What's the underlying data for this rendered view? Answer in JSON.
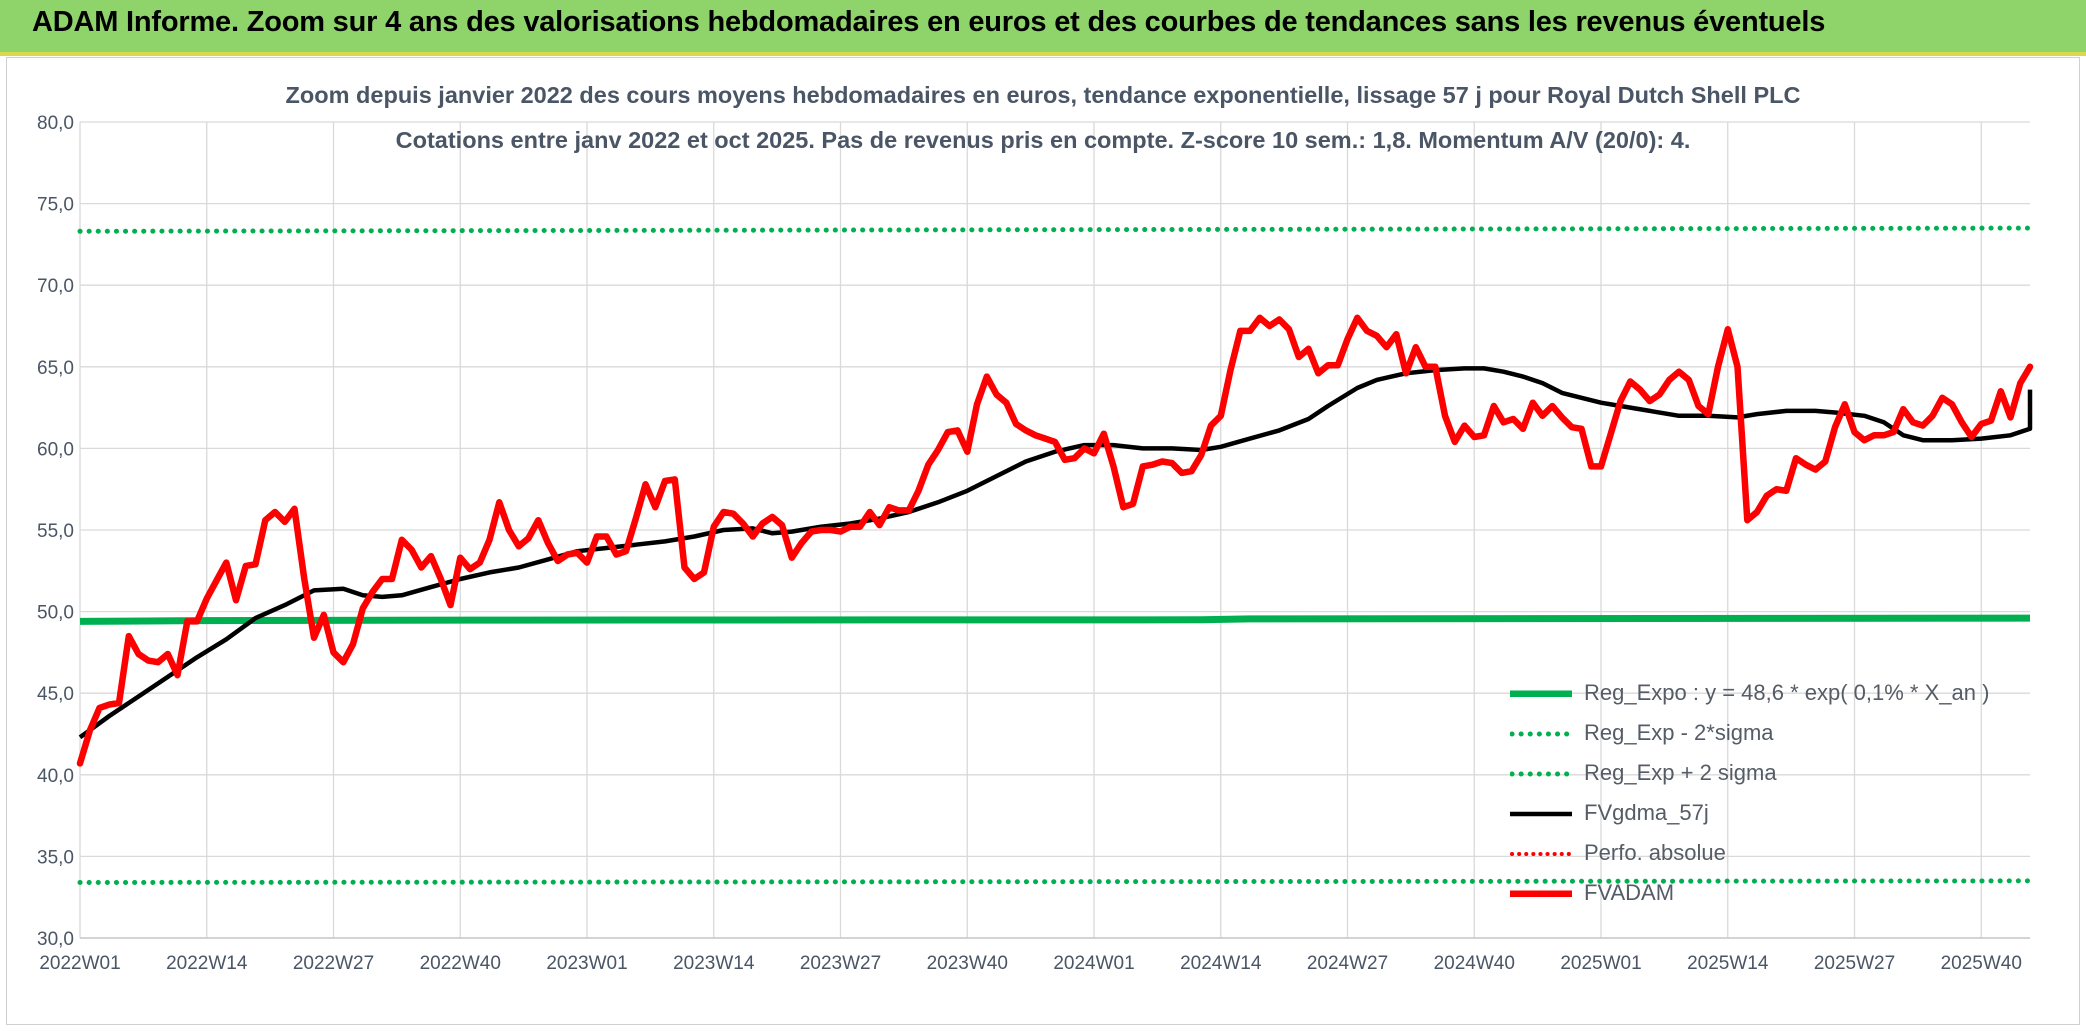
{
  "header": {
    "title": "ADAM Informe. Zoom sur 4 ans des valorisations hebdomadaires en euros et des courbes de tendances sans les revenus éventuels"
  },
  "chart_data": {
    "type": "line",
    "title": "Zoom depuis janvier 2022 des cours moyens hebdomadaires en euros, tendance exponentielle, lissage 57 j pour Royal Dutch Shell PLC",
    "subtitle": "Cotations entre janv 2022 et oct 2025. Pas de revenus pris en compte. Z-score 10 sem.: 1,8. Momentum A/V (20/0): 4.",
    "xlabel": "",
    "ylabel": "",
    "ylim": [
      30,
      80
    ],
    "y_ticks": [
      "80,0",
      "75,0",
      "70,0",
      "65,0",
      "60,0",
      "55,0",
      "50,0",
      "45,0",
      "40,0",
      "35,0",
      "30,0"
    ],
    "x_ticks": [
      "2022W01",
      "2022W14",
      "2022W27",
      "2022W40",
      "2023W01",
      "2023W14",
      "2023W27",
      "2023W40",
      "2024W01",
      "2024W14",
      "2024W27",
      "2024W40",
      "2025W01",
      "2025W14",
      "2025W27",
      "2025W40"
    ],
    "x_tick_index": [
      0,
      13,
      26,
      39,
      52,
      65,
      78,
      91,
      104,
      117,
      130,
      143,
      156,
      169,
      182,
      195
    ],
    "n_weeks": 201,
    "grid": true,
    "legend_position": "bottom-right",
    "colors": {
      "reg": "#00b050",
      "ma": "#000000",
      "price": "#ff0000",
      "perfo": "#ff0000",
      "grid": "#d9d9d9",
      "axis_text": "#4a5565"
    },
    "series": [
      {
        "name": "Reg_Expo : y = 48,6 * exp( 0,1% *  X_an )",
        "style": "solid-thick",
        "points": [
          [
            0,
            49.4
          ],
          [
            12,
            49.45
          ],
          [
            40,
            49.48
          ],
          [
            115,
            49.5
          ],
          [
            120,
            49.55
          ],
          [
            200,
            49.6
          ]
        ]
      },
      {
        "name": "Reg_Exp - 2*sigma",
        "style": "dotted",
        "points": [
          [
            0,
            33.4
          ],
          [
            200,
            33.5
          ]
        ]
      },
      {
        "name": "Reg_Exp + 2 sigma",
        "style": "dotted",
        "points": [
          [
            0,
            73.3
          ],
          [
            200,
            73.5
          ]
        ]
      },
      {
        "name": "FVgdma_57j",
        "style": "solid",
        "points": [
          [
            0,
            42.3
          ],
          [
            3,
            43.6
          ],
          [
            6,
            44.8
          ],
          [
            9,
            46.0
          ],
          [
            12,
            47.2
          ],
          [
            15,
            48.3
          ],
          [
            18,
            49.6
          ],
          [
            21,
            50.4
          ],
          [
            24,
            51.3
          ],
          [
            27,
            51.4
          ],
          [
            29,
            51.0
          ],
          [
            31,
            50.9
          ],
          [
            33,
            51.0
          ],
          [
            36,
            51.5
          ],
          [
            39,
            52.0
          ],
          [
            42,
            52.4
          ],
          [
            45,
            52.7
          ],
          [
            48,
            53.2
          ],
          [
            51,
            53.7
          ],
          [
            54,
            53.9
          ],
          [
            57,
            54.1
          ],
          [
            60,
            54.3
          ],
          [
            63,
            54.6
          ],
          [
            66,
            55.0
          ],
          [
            69,
            55.1
          ],
          [
            71,
            54.8
          ],
          [
            73,
            54.9
          ],
          [
            76,
            55.2
          ],
          [
            79,
            55.4
          ],
          [
            82,
            55.7
          ],
          [
            85,
            56.1
          ],
          [
            88,
            56.7
          ],
          [
            91,
            57.4
          ],
          [
            94,
            58.3
          ],
          [
            97,
            59.2
          ],
          [
            100,
            59.8
          ],
          [
            103,
            60.2
          ],
          [
            106,
            60.2
          ],
          [
            109,
            60.0
          ],
          [
            112,
            60.0
          ],
          [
            115,
            59.9
          ],
          [
            117,
            60.1
          ],
          [
            120,
            60.6
          ],
          [
            123,
            61.1
          ],
          [
            126,
            61.8
          ],
          [
            128,
            62.6
          ],
          [
            131,
            63.7
          ],
          [
            133,
            64.2
          ],
          [
            136,
            64.6
          ],
          [
            139,
            64.8
          ],
          [
            142,
            64.9
          ],
          [
            144,
            64.9
          ],
          [
            146,
            64.7
          ],
          [
            148,
            64.4
          ],
          [
            150,
            64.0
          ],
          [
            152,
            63.4
          ],
          [
            154,
            63.1
          ],
          [
            156,
            62.8
          ],
          [
            158,
            62.6
          ],
          [
            161,
            62.3
          ],
          [
            164,
            62.0
          ],
          [
            167,
            62.0
          ],
          [
            170,
            61.9
          ],
          [
            172,
            62.1
          ],
          [
            175,
            62.3
          ],
          [
            178,
            62.3
          ],
          [
            180,
            62.2
          ],
          [
            183,
            62.0
          ],
          [
            185,
            61.6
          ],
          [
            187,
            60.8
          ],
          [
            189,
            60.5
          ],
          [
            192,
            60.5
          ],
          [
            195,
            60.6
          ],
          [
            198,
            60.8
          ],
          [
            201,
            61.2
          ],
          [
            204,
            61.6
          ],
          [
            206,
            62.0
          ],
          [
            208,
            62.2
          ],
          [
            210,
            62.5
          ],
          [
            212,
            62.8
          ],
          [
            214,
            63.2
          ],
          [
            216,
            63.6
          ]
        ]
      },
      {
        "name": "Perfo. absolue",
        "style": "dotted-red",
        "points": []
      },
      {
        "name": "FVADAM",
        "style": "solid-thick",
        "points": [
          [
            0,
            40.7
          ],
          [
            1,
            42.7
          ],
          [
            2,
            44.1
          ],
          [
            3,
            44.3
          ],
          [
            4,
            44.4
          ],
          [
            5,
            48.5
          ],
          [
            6,
            47.4
          ],
          [
            7,
            47.0
          ],
          [
            8,
            46.9
          ],
          [
            9,
            47.4
          ],
          [
            10,
            46.1
          ],
          [
            11,
            49.4
          ],
          [
            12,
            49.4
          ],
          [
            13,
            50.8
          ],
          [
            14,
            51.9
          ],
          [
            15,
            53.0
          ],
          [
            16,
            50.7
          ],
          [
            17,
            52.8
          ],
          [
            18,
            52.9
          ],
          [
            19,
            55.6
          ],
          [
            20,
            56.1
          ],
          [
            21,
            55.5
          ],
          [
            22,
            56.3
          ],
          [
            23,
            52.0
          ],
          [
            24,
            48.4
          ],
          [
            25,
            49.8
          ],
          [
            26,
            47.5
          ],
          [
            27,
            46.9
          ],
          [
            28,
            48.0
          ],
          [
            29,
            50.2
          ],
          [
            30,
            51.2
          ],
          [
            31,
            52.0
          ],
          [
            32,
            52.0
          ],
          [
            33,
            54.4
          ],
          [
            34,
            53.8
          ],
          [
            35,
            52.7
          ],
          [
            36,
            53.4
          ],
          [
            37,
            52.0
          ],
          [
            38,
            50.4
          ],
          [
            39,
            53.3
          ],
          [
            40,
            52.6
          ],
          [
            41,
            53.0
          ],
          [
            42,
            54.4
          ],
          [
            43,
            56.7
          ],
          [
            44,
            55.0
          ],
          [
            45,
            54.0
          ],
          [
            46,
            54.5
          ],
          [
            47,
            55.6
          ],
          [
            48,
            54.2
          ],
          [
            49,
            53.1
          ],
          [
            50,
            53.5
          ],
          [
            51,
            53.6
          ],
          [
            52,
            53.0
          ],
          [
            53,
            54.6
          ],
          [
            54,
            54.6
          ],
          [
            55,
            53.5
          ],
          [
            56,
            53.7
          ],
          [
            57,
            55.7
          ],
          [
            58,
            57.8
          ],
          [
            59,
            56.4
          ],
          [
            60,
            58.0
          ],
          [
            61,
            58.1
          ],
          [
            62,
            52.7
          ],
          [
            63,
            52.0
          ],
          [
            64,
            52.4
          ],
          [
            65,
            55.2
          ],
          [
            66,
            56.1
          ],
          [
            67,
            56.0
          ],
          [
            68,
            55.4
          ],
          [
            69,
            54.6
          ],
          [
            70,
            55.4
          ],
          [
            71,
            55.8
          ],
          [
            72,
            55.3
          ],
          [
            73,
            53.3
          ],
          [
            74,
            54.2
          ],
          [
            75,
            54.9
          ],
          [
            76,
            55.0
          ],
          [
            77,
            55.0
          ],
          [
            78,
            54.9
          ],
          [
            79,
            55.2
          ],
          [
            80,
            55.2
          ],
          [
            81,
            56.1
          ],
          [
            82,
            55.3
          ],
          [
            83,
            56.4
          ],
          [
            84,
            56.2
          ],
          [
            85,
            56.2
          ],
          [
            86,
            57.4
          ],
          [
            87,
            59.0
          ],
          [
            88,
            59.9
          ],
          [
            89,
            61.0
          ],
          [
            90,
            61.1
          ],
          [
            91,
            59.8
          ],
          [
            92,
            62.7
          ],
          [
            93,
            64.4
          ],
          [
            94,
            63.3
          ],
          [
            95,
            62.8
          ],
          [
            96,
            61.5
          ],
          [
            97,
            61.1
          ],
          [
            98,
            60.8
          ],
          [
            99,
            60.6
          ],
          [
            100,
            60.4
          ],
          [
            101,
            59.3
          ],
          [
            102,
            59.4
          ],
          [
            103,
            60.0
          ],
          [
            104,
            59.7
          ],
          [
            105,
            60.9
          ],
          [
            106,
            58.9
          ],
          [
            107,
            56.4
          ],
          [
            108,
            56.6
          ],
          [
            109,
            58.9
          ],
          [
            110,
            59.0
          ],
          [
            111,
            59.2
          ],
          [
            112,
            59.1
          ],
          [
            113,
            58.5
          ],
          [
            114,
            58.6
          ],
          [
            115,
            59.6
          ],
          [
            116,
            61.4
          ],
          [
            117,
            62.0
          ],
          [
            118,
            64.8
          ],
          [
            119,
            67.2
          ],
          [
            120,
            67.2
          ],
          [
            121,
            68.0
          ],
          [
            122,
            67.5
          ],
          [
            123,
            67.9
          ],
          [
            124,
            67.3
          ],
          [
            125,
            65.6
          ],
          [
            126,
            66.1
          ],
          [
            127,
            64.6
          ],
          [
            128,
            65.1
          ],
          [
            129,
            65.1
          ],
          [
            130,
            66.7
          ],
          [
            131,
            68.0
          ],
          [
            132,
            67.2
          ],
          [
            133,
            66.9
          ],
          [
            134,
            66.2
          ],
          [
            135,
            67.0
          ],
          [
            136,
            64.6
          ],
          [
            137,
            66.2
          ],
          [
            138,
            65.0
          ],
          [
            139,
            65.0
          ],
          [
            140,
            62.0
          ],
          [
            141,
            60.4
          ],
          [
            142,
            61.4
          ],
          [
            143,
            60.7
          ],
          [
            144,
            60.8
          ],
          [
            145,
            62.6
          ],
          [
            146,
            61.6
          ],
          [
            147,
            61.8
          ],
          [
            148,
            61.2
          ],
          [
            149,
            62.8
          ],
          [
            150,
            62.0
          ],
          [
            151,
            62.6
          ],
          [
            152,
            61.9
          ],
          [
            153,
            61.3
          ],
          [
            154,
            61.2
          ],
          [
            155,
            58.9
          ],
          [
            156,
            58.9
          ],
          [
            157,
            60.9
          ],
          [
            158,
            62.9
          ],
          [
            159,
            64.1
          ],
          [
            160,
            63.6
          ],
          [
            161,
            62.9
          ],
          [
            162,
            63.3
          ],
          [
            163,
            64.2
          ],
          [
            164,
            64.7
          ],
          [
            165,
            64.2
          ],
          [
            166,
            62.6
          ],
          [
            167,
            62.1
          ],
          [
            168,
            65.0
          ],
          [
            169,
            67.3
          ],
          [
            170,
            65.0
          ],
          [
            171,
            55.6
          ],
          [
            172,
            56.1
          ],
          [
            173,
            57.1
          ],
          [
            174,
            57.5
          ],
          [
            175,
            57.4
          ],
          [
            176,
            59.4
          ],
          [
            177,
            59.0
          ],
          [
            178,
            58.7
          ],
          [
            179,
            59.2
          ],
          [
            180,
            61.3
          ],
          [
            181,
            62.7
          ],
          [
            182,
            61.0
          ],
          [
            183,
            60.5
          ],
          [
            184,
            60.8
          ],
          [
            185,
            60.8
          ],
          [
            186,
            61.0
          ],
          [
            187,
            62.4
          ],
          [
            188,
            61.6
          ],
          [
            189,
            61.4
          ],
          [
            190,
            62.0
          ],
          [
            191,
            63.1
          ],
          [
            192,
            62.7
          ],
          [
            193,
            61.6
          ],
          [
            194,
            60.7
          ],
          [
            195,
            61.5
          ],
          [
            196,
            61.7
          ],
          [
            197,
            63.5
          ],
          [
            198,
            61.9
          ],
          [
            199,
            64.0
          ],
          [
            200,
            65.0
          ]
        ]
      }
    ]
  }
}
